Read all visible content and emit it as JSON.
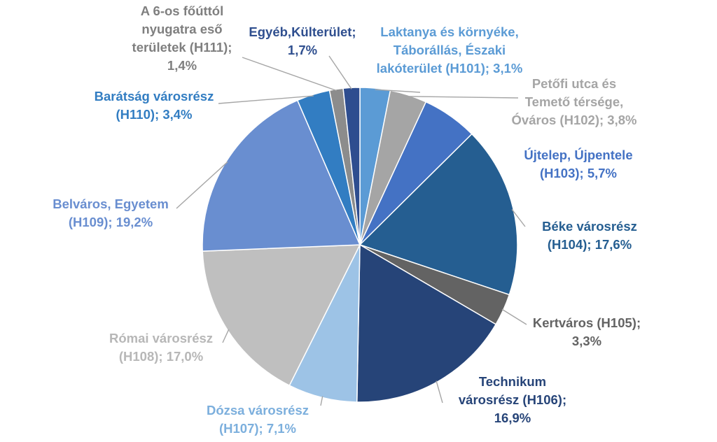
{
  "chart_data": {
    "type": "pie",
    "start_angle_deg": 0,
    "direction": "clockwise",
    "slices": [
      {
        "name": "Laktanya és környéke, Táborállás, Északi lakóterület (H101)",
        "value": 3.1,
        "color": "#5b9bd5",
        "label_lines": [
          "Laktanya és környéke,",
          "Táborállás, Északi",
          "lakóterület (H101); 3,1%"
        ],
        "label_color": "#5b9bd5"
      },
      {
        "name": "Petőfi utca és Temető térsége, Óváros (H102)",
        "value": 3.8,
        "color": "#a5a5a5",
        "label_lines": [
          "Petőfi utca és",
          "Temető térsége,",
          "Óváros (H102); 3,8%"
        ],
        "label_color": "#a5a5a5"
      },
      {
        "name": "Újtelep, Újpentele (H103)",
        "value": 5.7,
        "color": "#4472c4",
        "label_lines": [
          "Újtelep, Újpentele",
          "(H103); 5,7%"
        ],
        "label_color": "#4472c4"
      },
      {
        "name": "Béke városrész (H104)",
        "value": 17.6,
        "color": "#255e91",
        "label_lines": [
          "Béke városrész",
          "(H104); 17,6%"
        ],
        "label_color": "#255e91"
      },
      {
        "name": "Kertváros (H105)",
        "value": 3.3,
        "color": "#636363",
        "label_lines": [
          "Kertváros (H105);",
          "3,3%"
        ],
        "label_color": "#636363"
      },
      {
        "name": "Technikum városrész (H106)",
        "value": 16.9,
        "color": "#264478",
        "label_lines": [
          "Technikum",
          "városrész (H106);",
          "16,9%"
        ],
        "label_color": "#264478"
      },
      {
        "name": "Dózsa városrész (H107)",
        "value": 7.1,
        "color": "#9dc3e6",
        "label_lines": [
          "Dózsa városrész",
          "(H107); 7,1%"
        ],
        "label_color": "#7cafdd"
      },
      {
        "name": "Római városrész (H108)",
        "value": 17.0,
        "color": "#bfbfbf",
        "label_lines": [
          "Római városrész",
          "(H108); 17,0%"
        ],
        "label_color": "#b7b7b7"
      },
      {
        "name": "Belváros, Egyetem (H109)",
        "value": 19.2,
        "color": "#698ed0",
        "label_lines": [
          "Belváros, Egyetem",
          "(H109); 19,2%"
        ],
        "label_color": "#698ed0"
      },
      {
        "name": "Barátság városrész (H110)",
        "value": 3.4,
        "color": "#327dc2",
        "label_lines": [
          "Barátság városrész",
          "(H110); 3,4%"
        ],
        "label_color": "#327dc2"
      },
      {
        "name": "A 6-os főúttól nyugatra eső területek (H111)",
        "value": 1.4,
        "color": "#8c8c8c",
        "label_lines": [
          "A 6-os főúttól",
          "nyugatra eső",
          "területek (H111);",
          "1,4%"
        ],
        "label_color": "#7f7f7f"
      },
      {
        "name": "Egyéb,Külterület",
        "value": 1.7,
        "color": "#2e4d8f",
        "label_lines": [
          "Egyéb,Külterület;",
          "1,7%"
        ],
        "label_color": "#2f4f8f"
      }
    ]
  }
}
